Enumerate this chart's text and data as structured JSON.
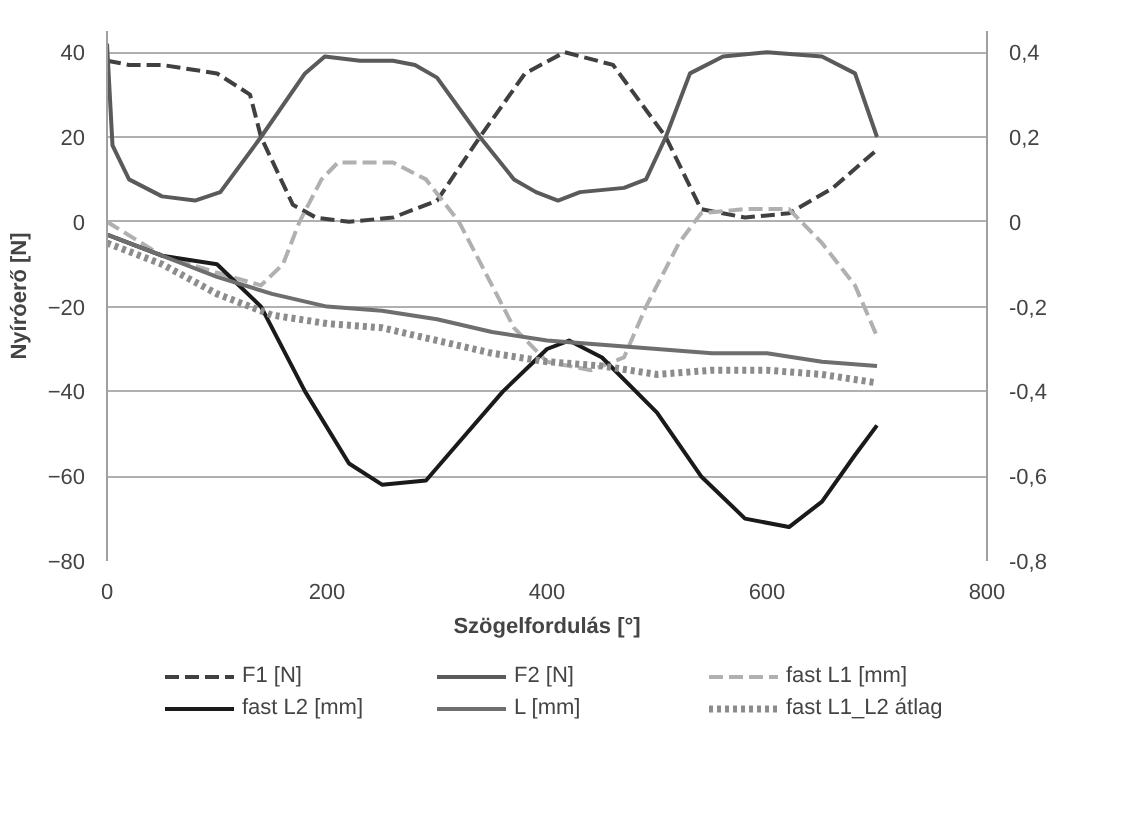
{
  "chart_data": {
    "type": "line",
    "xlabel": "Szögelfordulás [°]",
    "ylabel": "Nyíróerő [N]",
    "xlim": [
      0,
      800
    ],
    "xticks": [
      0,
      200,
      400,
      600,
      800
    ],
    "ylim": [
      -80,
      45
    ],
    "yticks": [
      -80,
      -60,
      -40,
      -20,
      0,
      20,
      40
    ],
    "y2lim": [
      -0.8,
      0.45
    ],
    "y2ticks": [
      {
        "value": -0.8,
        "label": "-0,8"
      },
      {
        "value": -0.6,
        "label": "-0,6"
      },
      {
        "value": -0.4,
        "label": "-0,4"
      },
      {
        "value": -0.2,
        "label": "-0,2"
      },
      0,
      {
        "value": 0.2,
        "label": "0,2"
      },
      {
        "value": 0.4,
        "label": "0,4"
      }
    ],
    "grid": "y",
    "legend": "bottom",
    "series": [
      {
        "name": "F1 [N]",
        "color": "#404040",
        "line_style": "dashed",
        "x": [
          0,
          20,
          50,
          100,
          130,
          140,
          169,
          190,
          220,
          260,
          300,
          339,
          380,
          416,
          460,
          508,
          540,
          580,
          620,
          660,
          700
        ],
        "values": [
          38,
          37,
          37,
          35,
          30,
          20,
          4,
          1,
          0,
          1,
          5,
          20,
          35,
          40,
          37,
          20,
          3,
          1,
          2,
          8,
          17
        ]
      },
      {
        "name": "F2 [N]",
        "color": "#5a5a5a",
        "line_style": "solid",
        "x": [
          0,
          5,
          20,
          50,
          80,
          103,
          140,
          180,
          198,
          230,
          260,
          280,
          300,
          339,
          370,
          390,
          410,
          430,
          470,
          490,
          508,
          530,
          560,
          600,
          650,
          680,
          700
        ],
        "values": [
          42,
          18,
          10,
          6,
          5,
          7,
          20,
          35,
          39,
          38,
          38,
          37,
          34,
          20,
          10,
          7,
          5,
          7,
          8,
          10,
          20,
          35,
          39,
          40,
          39,
          35,
          20
        ]
      },
      {
        "name": "fast L1 [mm]",
        "color": "#b0b0b0",
        "line_style": "dashed",
        "axis": "y2",
        "x": [
          0,
          50,
          100,
          140,
          160,
          175,
          195,
          210,
          260,
          290,
          320,
          340,
          370,
          400,
          440,
          470,
          490,
          520,
          540,
          580,
          620,
          650,
          680,
          700
        ],
        "values": [
          0,
          -0.08,
          -0.12,
          -0.15,
          -0.1,
          0,
          0.1,
          0.14,
          0.14,
          0.1,
          0,
          -0.1,
          -0.25,
          -0.33,
          -0.35,
          -0.32,
          -0.2,
          -0.05,
          0.02,
          0.03,
          0.03,
          -0.05,
          -0.15,
          -0.27
        ]
      },
      {
        "name": "fast L2 [mm]",
        "color": "#1a1a1a",
        "line_style": "solid",
        "axis": "y2",
        "x": [
          0,
          50,
          100,
          140,
          180,
          220,
          250,
          290,
          320,
          360,
          400,
          420,
          450,
          500,
          540,
          580,
          620,
          650,
          680,
          700
        ],
        "values": [
          -0.03,
          -0.08,
          -0.1,
          -0.2,
          -0.4,
          -0.57,
          -0.62,
          -0.61,
          -0.52,
          -0.4,
          -0.3,
          -0.28,
          -0.32,
          -0.45,
          -0.6,
          -0.7,
          -0.72,
          -0.66,
          -0.55,
          -0.48
        ]
      },
      {
        "name": "L [mm]",
        "color": "#6e6e6e",
        "line_style": "solid",
        "axis": "y2",
        "x": [
          0,
          50,
          100,
          150,
          200,
          250,
          300,
          350,
          400,
          450,
          500,
          550,
          600,
          650,
          700
        ],
        "values": [
          -0.03,
          -0.08,
          -0.13,
          -0.17,
          -0.2,
          -0.21,
          -0.23,
          -0.26,
          -0.28,
          -0.29,
          -0.3,
          -0.31,
          -0.31,
          -0.33,
          -0.34
        ]
      },
      {
        "name": "fast L1_L2 átlag",
        "color": "#8c8c8c",
        "line_style": "dotted",
        "axis": "y2",
        "x": [
          0,
          50,
          100,
          150,
          200,
          250,
          300,
          350,
          400,
          450,
          500,
          550,
          600,
          650,
          700
        ],
        "values": [
          -0.05,
          -0.1,
          -0.17,
          -0.22,
          -0.24,
          -0.25,
          -0.28,
          -0.31,
          -0.33,
          -0.34,
          -0.36,
          -0.35,
          -0.35,
          -0.36,
          -0.38
        ]
      }
    ]
  }
}
